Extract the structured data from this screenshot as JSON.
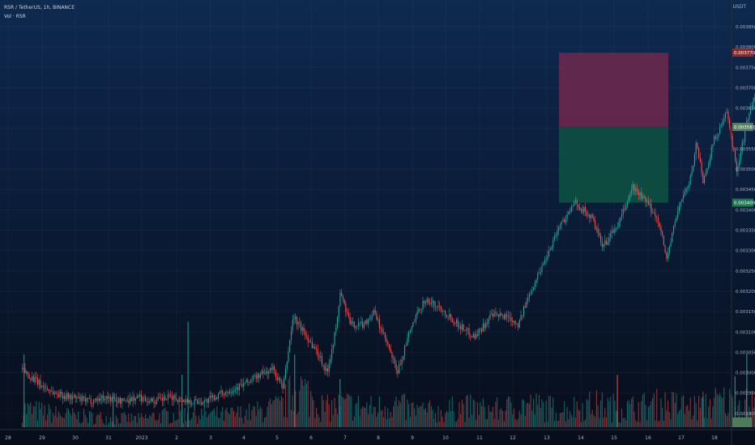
{
  "header": {
    "symbol_title": "RSR / TetherUS, 1h, BINANCE",
    "volume_label": "Vol · RSR"
  },
  "price_scale": {
    "unit": "USDT",
    "ticks": [
      "0.003850",
      "0.003800",
      "0.003750",
      "0.003700",
      "0.003650",
      "0.003600",
      "0.003550",
      "0.003500",
      "0.003450",
      "0.003400",
      "0.003350",
      "0.003300",
      "0.003250",
      "0.003200",
      "0.003150",
      "0.003100",
      "0.003050",
      "0.003000",
      "0.002950",
      "0.002900"
    ],
    "badges": {
      "stop": "0.003770",
      "entry": "0.003587",
      "target": "0.003400"
    }
  },
  "time_axis": {
    "ticks": [
      "28",
      "29",
      "30",
      "31",
      "2023",
      "2",
      "3",
      "4",
      "5",
      "6",
      "7",
      "8",
      "9",
      "10",
      "11",
      "12",
      "13",
      "14",
      "15",
      "16",
      "17",
      "18"
    ]
  },
  "position_tool": {
    "type": "short",
    "entry": 0.003587,
    "stop": 0.00377,
    "target": 0.0034
  },
  "colors": {
    "up": "#26a69a",
    "down": "#ef5350",
    "stop_zone": "#7d2a4f",
    "target_zone": "#0e5443"
  },
  "chart_data": {
    "type": "candlestick",
    "title": "RSR / TetherUS, 1h, BINANCE",
    "ylim": [
      0.00288,
      0.00388
    ],
    "price_path": [
      {
        "x": 27.0,
        "y": 0.00299
      },
      {
        "x": 27.6,
        "y": 0.00295
      },
      {
        "x": 28.0,
        "y": 0.00293
      },
      {
        "x": 28.5,
        "y": 0.00292
      },
      {
        "x": 29.0,
        "y": 0.00291
      },
      {
        "x": 29.5,
        "y": 0.00292
      },
      {
        "x": 30.0,
        "y": 0.00291
      },
      {
        "x": 30.5,
        "y": 0.00292
      },
      {
        "x": 31.0,
        "y": 0.00291
      },
      {
        "x": 31.5,
        "y": 0.00292
      },
      {
        "x": 32.0,
        "y": 0.00291
      },
      {
        "x": 32.5,
        "y": 0.00291
      },
      {
        "x": 33.0,
        "y": 0.00293
      },
      {
        "x": 33.6,
        "y": 0.00295
      },
      {
        "x": 34.0,
        "y": 0.00297
      },
      {
        "x": 34.5,
        "y": 0.00299
      },
      {
        "x": 34.8,
        "y": 0.00294
      },
      {
        "x": 35.0,
        "y": 0.00306
      },
      {
        "x": 35.1,
        "y": 0.00312
      },
      {
        "x": 35.5,
        "y": 0.00307
      },
      {
        "x": 35.9,
        "y": 0.00302
      },
      {
        "x": 36.1,
        "y": 0.00298
      },
      {
        "x": 36.4,
        "y": 0.0031
      },
      {
        "x": 36.5,
        "y": 0.00318
      },
      {
        "x": 36.8,
        "y": 0.0031
      },
      {
        "x": 37.2,
        "y": 0.0031
      },
      {
        "x": 37.5,
        "y": 0.00313
      },
      {
        "x": 37.9,
        "y": 0.00305
      },
      {
        "x": 38.2,
        "y": 0.00298
      },
      {
        "x": 38.6,
        "y": 0.00309
      },
      {
        "x": 39.0,
        "y": 0.00316
      },
      {
        "x": 39.5,
        "y": 0.00314
      },
      {
        "x": 40.0,
        "y": 0.0031
      },
      {
        "x": 40.5,
        "y": 0.00307
      },
      {
        "x": 41.0,
        "y": 0.00312
      },
      {
        "x": 41.5,
        "y": 0.00312
      },
      {
        "x": 41.8,
        "y": 0.0031
      },
      {
        "x": 42.2,
        "y": 0.00319
      },
      {
        "x": 42.6,
        "y": 0.00326
      },
      {
        "x": 43.0,
        "y": 0.00334
      },
      {
        "x": 43.5,
        "y": 0.0034
      },
      {
        "x": 44.0,
        "y": 0.00336
      },
      {
        "x": 44.3,
        "y": 0.00329
      },
      {
        "x": 44.8,
        "y": 0.00335
      },
      {
        "x": 45.2,
        "y": 0.00344
      },
      {
        "x": 45.7,
        "y": 0.00339
      },
      {
        "x": 46.0,
        "y": 0.00335
      },
      {
        "x": 46.2,
        "y": 0.00326
      },
      {
        "x": 46.4,
        "y": 0.00333
      },
      {
        "x": 46.6,
        "y": 0.0034
      },
      {
        "x": 46.9,
        "y": 0.00345
      },
      {
        "x": 47.1,
        "y": 0.00355
      },
      {
        "x": 47.3,
        "y": 0.00345
      },
      {
        "x": 47.6,
        "y": 0.00355
      },
      {
        "x": 48.0,
        "y": 0.00362
      },
      {
        "x": 48.3,
        "y": 0.00348
      },
      {
        "x": 48.6,
        "y": 0.0036
      },
      {
        "x": 48.9,
        "y": 0.00368
      },
      {
        "x": 49.1,
        "y": 0.0036
      }
    ],
    "volume_scale_max": 100,
    "volume_profile": [
      {
        "x": 27.0,
        "v": 40
      },
      {
        "x": 28.0,
        "v": 28
      },
      {
        "x": 29.0,
        "v": 22
      },
      {
        "x": 30.5,
        "v": 18
      },
      {
        "x": 31.0,
        "v": 24
      },
      {
        "x": 32.0,
        "v": 30
      },
      {
        "x": 33.0,
        "v": 26
      },
      {
        "x": 33.9,
        "v": 32
      },
      {
        "x": 34.7,
        "v": 44
      },
      {
        "x": 35.2,
        "v": 88
      },
      {
        "x": 36.0,
        "v": 40
      },
      {
        "x": 36.6,
        "v": 48
      },
      {
        "x": 37.5,
        "v": 40
      },
      {
        "x": 38.0,
        "v": 52
      },
      {
        "x": 38.5,
        "v": 38
      },
      {
        "x": 39.5,
        "v": 32
      },
      {
        "x": 40.0,
        "v": 44
      },
      {
        "x": 41.0,
        "v": 36
      },
      {
        "x": 42.0,
        "v": 48
      },
      {
        "x": 43.0,
        "v": 38
      },
      {
        "x": 44.0,
        "v": 48
      },
      {
        "x": 45.0,
        "v": 40
      },
      {
        "x": 46.0,
        "v": 50
      },
      {
        "x": 47.0,
        "v": 42
      },
      {
        "x": 47.8,
        "v": 56
      },
      {
        "x": 48.5,
        "v": 50
      },
      {
        "x": 49.1,
        "v": 60
      }
    ],
    "volume_spikes": [
      {
        "x": 27.05,
        "v": 100
      },
      {
        "x": 29.7,
        "v": 48
      },
      {
        "x": 31.75,
        "v": 72
      },
      {
        "x": 31.93,
        "v": 145
      },
      {
        "x": 35.1,
        "v": 100
      },
      {
        "x": 36.45,
        "v": 66
      },
      {
        "x": 44.7,
        "v": 72
      },
      {
        "x": 47.25,
        "v": 42
      },
      {
        "x": 48.2,
        "v": 70
      },
      {
        "x": 48.55,
        "v": 100
      }
    ]
  }
}
